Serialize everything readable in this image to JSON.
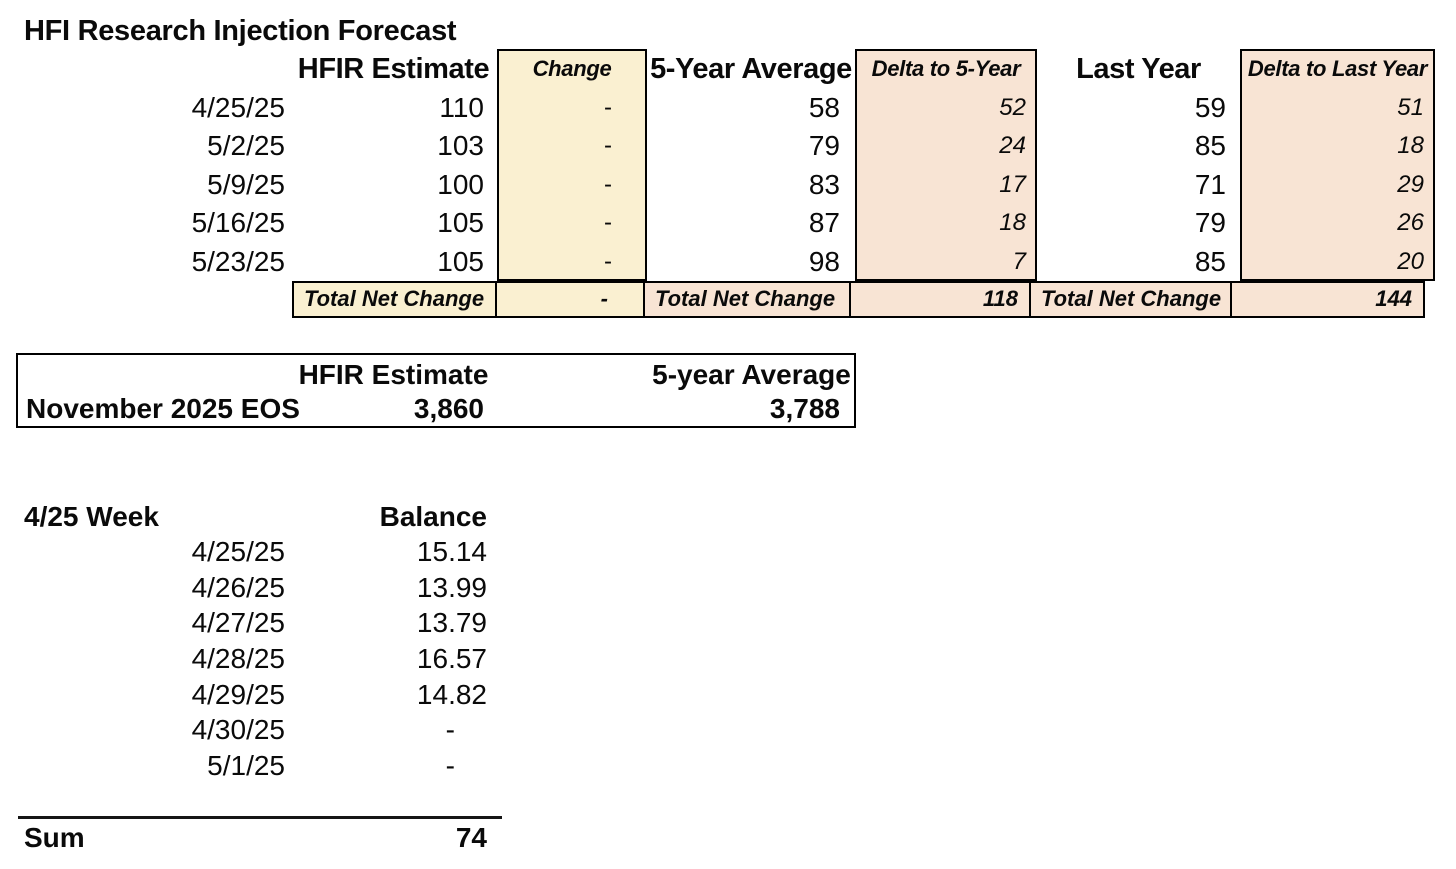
{
  "title": "HFI Research Injection Forecast",
  "colors": {
    "change_fill": "#faf0d1",
    "delta_fill": "#f8e4d4",
    "border": "#000000",
    "text": "#0a0a0a"
  },
  "forecast": {
    "headers": {
      "hfir": "HFIR Estimate",
      "change": "Change",
      "avg5": "5-Year Average",
      "delta5": "Delta to 5-Year",
      "last": "Last Year",
      "deltalast": "Delta to Last Year"
    },
    "rows": [
      {
        "date": "4/25/25",
        "hfir": "110",
        "change": "-",
        "avg5": "58",
        "delta5": "52",
        "last": "59",
        "deltalast": "51"
      },
      {
        "date": "5/2/25",
        "hfir": "103",
        "change": "-",
        "avg5": "79",
        "delta5": "24",
        "last": "85",
        "deltalast": "18"
      },
      {
        "date": "5/9/25",
        "hfir": "100",
        "change": "-",
        "avg5": "83",
        "delta5": "17",
        "last": "71",
        "deltalast": "29"
      },
      {
        "date": "5/16/25",
        "hfir": "105",
        "change": "-",
        "avg5": "87",
        "delta5": "18",
        "last": "79",
        "deltalast": "26"
      },
      {
        "date": "5/23/25",
        "hfir": "105",
        "change": "-",
        "avg5": "98",
        "delta5": "7",
        "last": "85",
        "deltalast": "20"
      }
    ],
    "totals": {
      "label_change": "Total Net Change",
      "change_value": "-",
      "label_delta5": "Total Net Change",
      "delta5_value": "118",
      "label_deltalast": "Total Net Change",
      "deltalast_value": "144"
    }
  },
  "eos": {
    "header_hfir": "HFIR Estimate",
    "header_avg5": "5-year Average",
    "row_label": "November 2025 EOS",
    "hfir_value": "3,860",
    "avg5_value": "3,788"
  },
  "week": {
    "title": "4/25 Week",
    "balance_header": "Balance",
    "rows": [
      {
        "date": "4/25/25",
        "balance": "15.14"
      },
      {
        "date": "4/26/25",
        "balance": "13.99"
      },
      {
        "date": "4/27/25",
        "balance": "13.79"
      },
      {
        "date": "4/28/25",
        "balance": "16.57"
      },
      {
        "date": "4/29/25",
        "balance": "14.82"
      },
      {
        "date": "4/30/25",
        "balance": "-"
      },
      {
        "date": "5/1/25",
        "balance": "-"
      }
    ],
    "sum_label": "Sum",
    "sum_value": "74"
  }
}
